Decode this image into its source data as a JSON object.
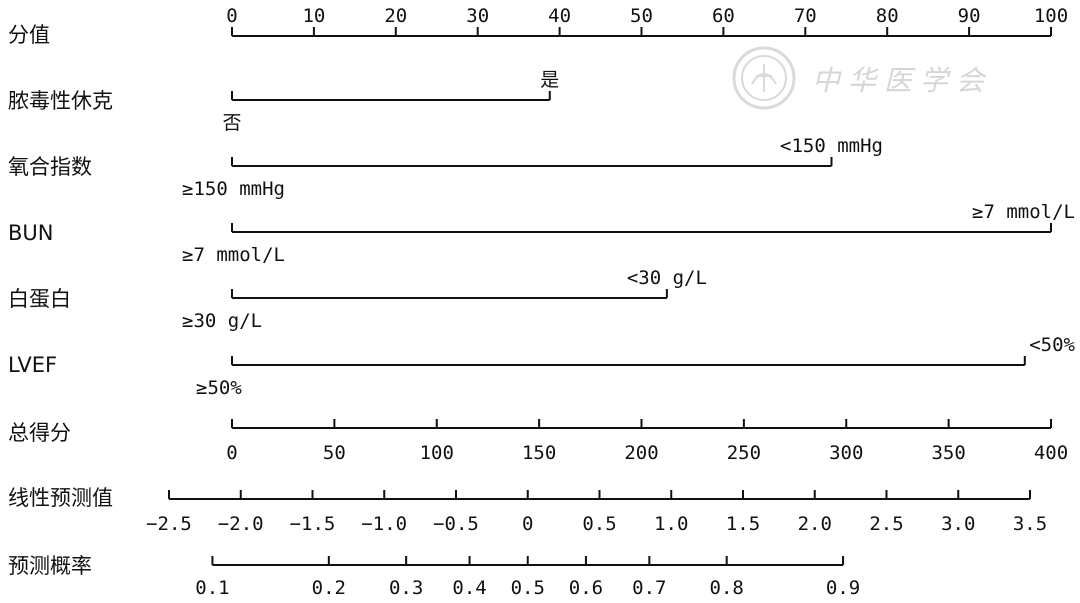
{
  "watermark": "中华医学会",
  "chart_data": {
    "type": "nomogram",
    "points_scale": {
      "label": "分值",
      "min": 0,
      "max": 100,
      "ticks": [
        0,
        10,
        20,
        30,
        40,
        50,
        60,
        70,
        80,
        90,
        100
      ]
    },
    "predictors": [
      {
        "name": "脓毒性休克",
        "levels": [
          {
            "label": "否",
            "points": 0
          },
          {
            "label": "是",
            "points": 38.8
          }
        ]
      },
      {
        "name": "氧合指数",
        "levels": [
          {
            "label": "≥150 mmHg",
            "points": 0
          },
          {
            "label": "<150 mmHg",
            "points": 73.2
          }
        ]
      },
      {
        "name": "BUN",
        "levels": [
          {
            "label": "≥7 mmol/L",
            "points": 0
          },
          {
            "label": "≥7 mmol/L",
            "points": 100
          }
        ]
      },
      {
        "name": "白蛋白",
        "levels": [
          {
            "label": "≥30 g/L",
            "points": 0
          },
          {
            "label": "<30 g/L",
            "points": 53.1
          }
        ]
      },
      {
        "name": "LVEF",
        "levels": [
          {
            "label": "≥50%",
            "points": 0
          },
          {
            "label": "<50%",
            "points": 96.8
          }
        ]
      }
    ],
    "total_points": {
      "label": "总得分",
      "min": 0,
      "max": 400,
      "ticks": [
        0,
        50,
        100,
        150,
        200,
        250,
        300,
        350,
        400
      ]
    },
    "linear_predictor": {
      "label": "线性预测值",
      "range": [
        -2.5,
        3.5
      ],
      "ticks": [
        -2.5,
        -2.0,
        -1.5,
        -1.0,
        -0.5,
        0,
        0.5,
        1.0,
        1.5,
        2.0,
        2.5,
        3.0,
        3.5
      ],
      "tick_labels": [
        "−2.5",
        "−2.0",
        "−1.5",
        "−1.0",
        "−0.5",
        "0",
        "0.5",
        "1.0",
        "1.5",
        "2.0",
        "2.5",
        "3.0",
        "3.5"
      ]
    },
    "predicted_probability": {
      "label": "预测概率",
      "ticks": [
        0.1,
        0.2,
        0.3,
        0.4,
        0.5,
        0.6,
        0.7,
        0.8,
        0.9
      ],
      "tick_labels": [
        "0.1",
        "0.2",
        "0.3",
        "0.4",
        "0.5",
        "0.6",
        "0.7",
        "0.8",
        "0.9"
      ]
    }
  }
}
